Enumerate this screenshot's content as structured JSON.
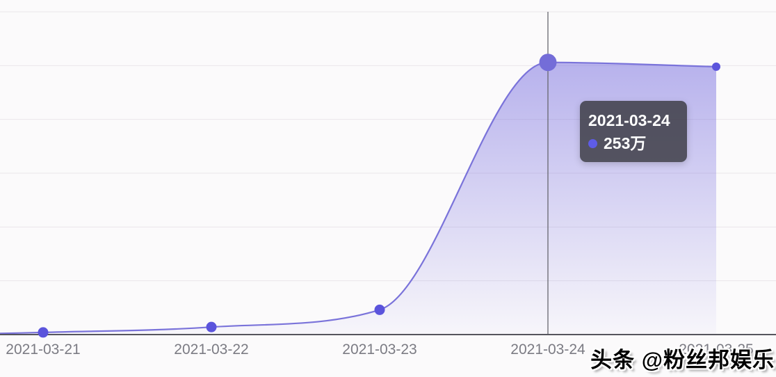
{
  "chart_data": {
    "type": "area",
    "title": "",
    "categories": [
      "2021-03-21",
      "2021-03-22",
      "2021-03-23",
      "2021-03-24",
      "2021-03-25"
    ],
    "values": [
      2,
      7,
      23,
      253,
      249
    ],
    "unit": "万",
    "ylim": [
      0,
      300
    ],
    "y_grid_step": 50,
    "y_axis_labels_visible": false,
    "grid": true,
    "legend_position": "none",
    "highlight_index": 3,
    "crosshair_category": "2021-03-24"
  },
  "tooltip": {
    "date": "2021-03-24",
    "value": "253万"
  },
  "watermark": {
    "text": "头条 @粉丝邦娱乐"
  },
  "colors": {
    "background": "#fbfafb",
    "line": "#7a73da",
    "area_fill_base": "#746ade",
    "point": "#5b54dc",
    "highlight_point": "#746dd8",
    "grid_line": "#eae6ea",
    "axis_line": "#55555d",
    "crosshair": "#66666e",
    "axis_label": "#7b7b83",
    "tooltip_bg": "rgba(56,56,64,0.82)",
    "tooltip_text": "#ffffff",
    "tooltip_dot": "#5e5ce6",
    "watermark_text": "#000000"
  }
}
